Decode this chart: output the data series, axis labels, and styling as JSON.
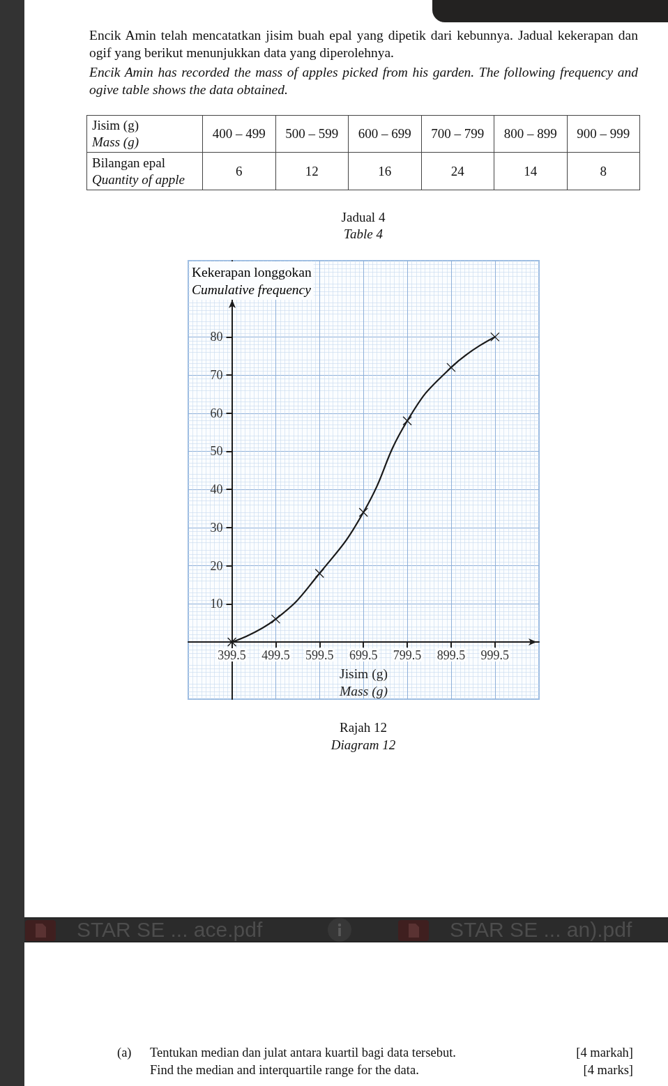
{
  "chart_data": [
    {
      "type": "other",
      "title": "Encik Amin telah mencatatkan jisim buah epal yang dipetik dari kebunnya. Jadual kekerapan dan ogif yang berikut menunjukkan data yang diperolehnya.",
      "subtitle": "Encik Amin has recorded the mass of apples picked from his garden. The following frequency and ogive table shows the data obtained.",
      "xlabel": "Jisim (g)\nMass (g)",
      "ylabel": "Bilangan epal\nQuantity of apple",
      "categories": [
        "400 – 499",
        "500 – 599",
        "600 – 699",
        "700 – 799",
        "800 – 899",
        "900 – 999"
      ],
      "values": [
        6,
        12,
        16,
        24,
        14,
        8
      ],
      "data_labels": true,
      "annotations": [
        "Jadual 4\nTable 4"
      ]
    },
    {
      "type": "line",
      "xlabel": "Jisim (g)\nMass (g)",
      "ylabel": "Kekerapan longgokan\nCumulative frequency",
      "x": [
        399.5,
        499.5,
        599.5,
        699.5,
        799.5,
        899.5,
        999.5
      ],
      "values": [
        0,
        6,
        18,
        34,
        58,
        72,
        80
      ],
      "color": "#1a1a1a",
      "marker": "cross",
      "line_style": "solid",
      "xlim": [
        300,
        1100
      ],
      "ylim": [
        -15,
        100
      ],
      "xticks": [
        399.5,
        499.5,
        599.5,
        699.5,
        799.5,
        899.5,
        999.5
      ],
      "yticks": [
        10,
        20,
        30,
        40,
        50,
        60,
        70,
        80
      ],
      "grid": true,
      "annotations": [
        "Rajah 12\nDiagram 12",
        "(a)",
        "Tentukan median dan julat antara kuartil bagi data tersebut.",
        "[4 markah]",
        "Find the median and interquartile range for the data.",
        "[4 marks]",
        "STAR SE ... ace.pdf",
        "STAR SE ... an).pdf"
      ]
    }
  ]
}
